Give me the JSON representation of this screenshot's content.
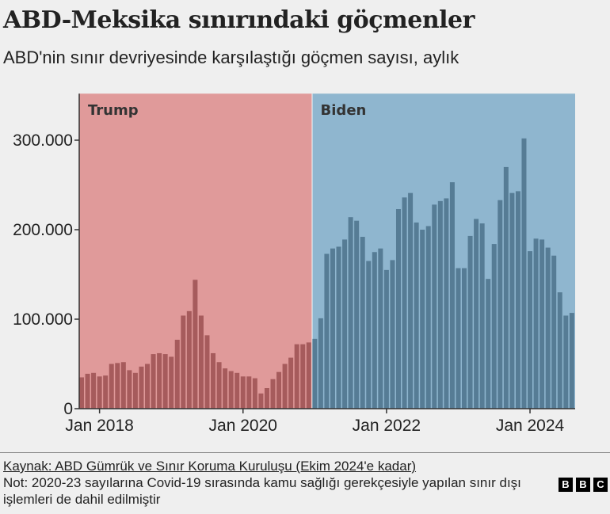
{
  "header": {
    "title": "ABD-Meksika sınırındaki göçmenler",
    "subtitle": "ABD'nin sınır devriyesinde karşılaştığı göçmen sayısı, aylık"
  },
  "chart_data": {
    "type": "bar",
    "title": "ABD-Meksika sınırındaki göçmenler",
    "subtitle": "ABD'nin sınır devriyesinde karşılaştığı göçmen sayısı, aylık",
    "xlabel": "",
    "ylabel": "",
    "ylim": [
      0,
      352000
    ],
    "grid": false,
    "y_ticks": [
      0,
      100000,
      200000,
      300000
    ],
    "y_tick_labels": [
      "0",
      "100.000",
      "200.000",
      "300.000"
    ],
    "x_ticks": [
      "2018-01",
      "2020-01",
      "2022-01",
      "2024-01"
    ],
    "x_tick_labels": [
      "Jan 2018",
      "Jan 2020",
      "Jan 2022",
      "Jan 2024"
    ],
    "periods": [
      {
        "label": "Trump",
        "start": "2017-10",
        "end": "2020-12",
        "shade_color": "#e09a9a",
        "bar_color": "#a65b5c"
      },
      {
        "label": "Biden",
        "start": "2021-01",
        "end": "2024-08",
        "shade_color": "#8fb6cf",
        "bar_color": "#567c95"
      }
    ],
    "x": [
      "2017-10",
      "2017-11",
      "2017-12",
      "2018-01",
      "2018-02",
      "2018-03",
      "2018-04",
      "2018-05",
      "2018-06",
      "2018-07",
      "2018-08",
      "2018-09",
      "2018-10",
      "2018-11",
      "2018-12",
      "2019-01",
      "2019-02",
      "2019-03",
      "2019-04",
      "2019-05",
      "2019-06",
      "2019-07",
      "2019-08",
      "2019-09",
      "2019-10",
      "2019-11",
      "2019-12",
      "2020-01",
      "2020-02",
      "2020-03",
      "2020-04",
      "2020-05",
      "2020-06",
      "2020-07",
      "2020-08",
      "2020-09",
      "2020-10",
      "2020-11",
      "2020-12",
      "2021-01",
      "2021-02",
      "2021-03",
      "2021-04",
      "2021-05",
      "2021-06",
      "2021-07",
      "2021-08",
      "2021-09",
      "2021-10",
      "2021-11",
      "2021-12",
      "2022-01",
      "2022-02",
      "2022-03",
      "2022-04",
      "2022-05",
      "2022-06",
      "2022-07",
      "2022-08",
      "2022-09",
      "2022-10",
      "2022-11",
      "2022-12",
      "2023-01",
      "2023-02",
      "2023-03",
      "2023-04",
      "2023-05",
      "2023-06",
      "2023-07",
      "2023-08",
      "2023-09",
      "2023-10",
      "2023-11",
      "2023-12",
      "2024-01",
      "2024-02",
      "2024-03",
      "2024-04",
      "2024-05",
      "2024-06",
      "2024-07",
      "2024-08"
    ],
    "values": [
      35000,
      39000,
      40000,
      36000,
      37000,
      50000,
      51000,
      52000,
      43000,
      40000,
      47000,
      50000,
      61000,
      62000,
      61000,
      58000,
      77000,
      104000,
      109000,
      144000,
      104000,
      82000,
      62000,
      52000,
      45000,
      42000,
      40000,
      36000,
      36000,
      34000,
      17000,
      23000,
      33000,
      41000,
      50000,
      57000,
      72000,
      72000,
      74000,
      78000,
      101000,
      173000,
      179000,
      181000,
      189000,
      214000,
      210000,
      192000,
      165000,
      175000,
      179000,
      155000,
      166000,
      223000,
      236000,
      241000,
      208000,
      200000,
      204000,
      228000,
      232000,
      235000,
      253000,
      157000,
      157000,
      193000,
      212000,
      207000,
      145000,
      184000,
      233000,
      270000,
      241000,
      243000,
      302000,
      176000,
      190000,
      189000,
      180000,
      171000,
      130000,
      104000,
      107000
    ]
  },
  "footer": {
    "source": "Kaynak: ABD Gümrük ve Sınır Koruma Kuruluşu (Ekim 2024'e kadar)",
    "note": "Not: 2020-23 sayılarına Covid-19 sırasında kamu sağlığı gerekçesiyle yapılan sınır dışı işlemleri de dahil edilmiştir",
    "logo": [
      "B",
      "B",
      "C"
    ]
  }
}
